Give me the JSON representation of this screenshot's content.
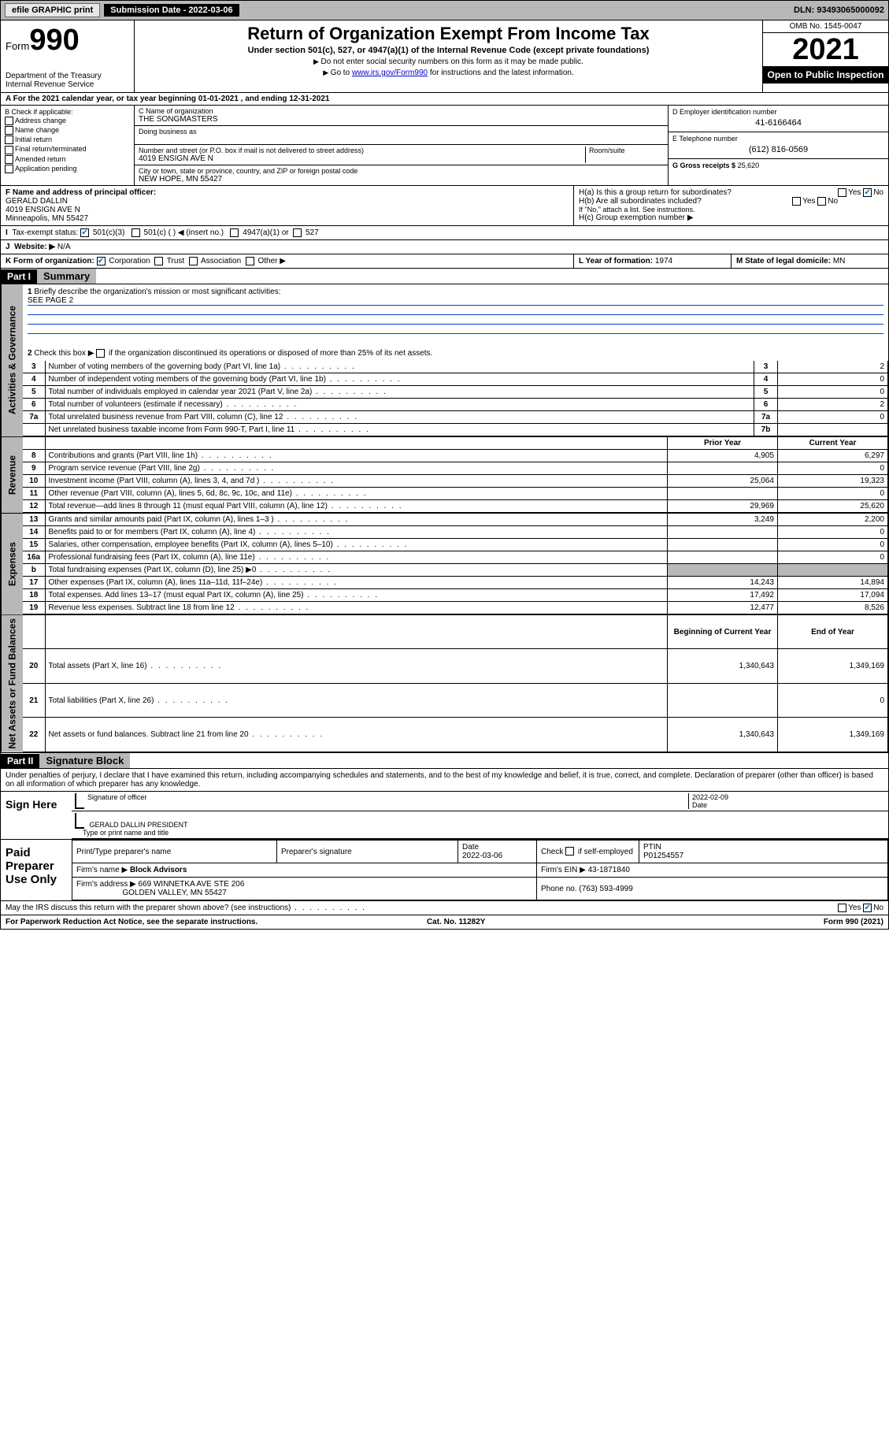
{
  "topbar": {
    "efile": "efile GRAPHIC print",
    "submission": "Submission Date - 2022-03-06",
    "dln": "DLN: 93493065000092"
  },
  "header": {
    "form_word": "Form",
    "form_num": "990",
    "dept": "Department of the Treasury Internal Revenue Service",
    "title": "Return of Organization Exempt From Income Tax",
    "subtitle": "Under section 501(c), 527, or 4947(a)(1) of the Internal Revenue Code (except private foundations)",
    "note1": "Do not enter social security numbers on this form as it may be made public.",
    "note2_pre": "Go to ",
    "note2_link": "www.irs.gov/Form990",
    "note2_post": " for instructions and the latest information.",
    "omb": "OMB No. 1545-0047",
    "year": "2021",
    "open": "Open to Public Inspection"
  },
  "rowA": "A For the 2021 calendar year, or tax year beginning 01-01-2021   , and ending 12-31-2021",
  "colB": {
    "label": "B Check if applicable:",
    "opts": [
      "Address change",
      "Name change",
      "Initial return",
      "Final return/terminated",
      "Amended return",
      "Application pending"
    ]
  },
  "colC": {
    "name_lbl": "C Name of organization",
    "name": "THE SONGMASTERS",
    "dba_lbl": "Doing business as",
    "dba": "",
    "addr_lbl": "Number and street (or P.O. box if mail is not delivered to street address)",
    "room_lbl": "Room/suite",
    "addr": "4019 ENSIGN AVE N",
    "city_lbl": "City or town, state or province, country, and ZIP or foreign postal code",
    "city": "NEW HOPE, MN  55427"
  },
  "colD": {
    "ein_lbl": "D Employer identification number",
    "ein": "41-6166464",
    "tel_lbl": "E Telephone number",
    "tel": "(612) 816-0569",
    "gross_lbl": "G Gross receipts $",
    "gross": "25,620"
  },
  "rowF": {
    "lbl": "F Name and address of principal officer:",
    "name": "GERALD DALLIN",
    "addr1": "4019 ENSIGN AVE N",
    "addr2": "Minneapolis, MN  55427"
  },
  "rowH": {
    "ha": "H(a)  Is this a group return for subordinates?",
    "hb": "H(b)  Are all subordinates included?",
    "hb_note": "If \"No,\" attach a list. See instructions.",
    "hc": "H(c)  Group exemption number ▶",
    "yes": "Yes",
    "no": "No"
  },
  "rowI": {
    "lbl": "Tax-exempt status:",
    "o1": "501(c)(3)",
    "o2": "501(c) (  ) ◀ (insert no.)",
    "o3": "4947(a)(1) or",
    "o4": "527"
  },
  "rowJ": {
    "lbl": "Website: ▶",
    "val": "N/A"
  },
  "rowK": {
    "lbl": "K Form of organization:",
    "o1": "Corporation",
    "o2": "Trust",
    "o3": "Association",
    "o4": "Other ▶"
  },
  "rowL": {
    "lbl": "L Year of formation:",
    "val": "1974"
  },
  "rowM": {
    "lbl": "M State of legal domicile:",
    "val": "MN"
  },
  "part1": {
    "hdr": "Part I",
    "title": "Summary"
  },
  "summary": {
    "l1": "Briefly describe the organization's mission or most significant activities:",
    "l1v": "SEE PAGE 2",
    "l2": "Check this box ▶       if the organization discontinued its operations or disposed of more than 25% of its net assets.",
    "rows_gov": [
      {
        "n": "3",
        "d": "Number of voting members of the governing body (Part VI, line 1a)",
        "b": "3",
        "v": "2"
      },
      {
        "n": "4",
        "d": "Number of independent voting members of the governing body (Part VI, line 1b)",
        "b": "4",
        "v": "0"
      },
      {
        "n": "5",
        "d": "Total number of individuals employed in calendar year 2021 (Part V, line 2a)",
        "b": "5",
        "v": "0"
      },
      {
        "n": "6",
        "d": "Total number of volunteers (estimate if necessary)",
        "b": "6",
        "v": "2"
      },
      {
        "n": "7a",
        "d": "Total unrelated business revenue from Part VIII, column (C), line 12",
        "b": "7a",
        "v": "0"
      },
      {
        "n": "",
        "d": "Net unrelated business taxable income from Form 990-T, Part I, line 11",
        "b": "7b",
        "v": ""
      }
    ],
    "hdr_py": "Prior Year",
    "hdr_cy": "Current Year",
    "rows_rev": [
      {
        "n": "8",
        "d": "Contributions and grants (Part VIII, line 1h)",
        "py": "4,905",
        "cy": "6,297"
      },
      {
        "n": "9",
        "d": "Program service revenue (Part VIII, line 2g)",
        "py": "",
        "cy": "0"
      },
      {
        "n": "10",
        "d": "Investment income (Part VIII, column (A), lines 3, 4, and 7d )",
        "py": "25,064",
        "cy": "19,323"
      },
      {
        "n": "11",
        "d": "Other revenue (Part VIII, column (A), lines 5, 6d, 8c, 9c, 10c, and 11e)",
        "py": "",
        "cy": "0"
      },
      {
        "n": "12",
        "d": "Total revenue—add lines 8 through 11 (must equal Part VIII, column (A), line 12)",
        "py": "29,969",
        "cy": "25,620"
      }
    ],
    "rows_exp": [
      {
        "n": "13",
        "d": "Grants and similar amounts paid (Part IX, column (A), lines 1–3 )",
        "py": "3,249",
        "cy": "2,200"
      },
      {
        "n": "14",
        "d": "Benefits paid to or for members (Part IX, column (A), line 4)",
        "py": "",
        "cy": "0"
      },
      {
        "n": "15",
        "d": "Salaries, other compensation, employee benefits (Part IX, column (A), lines 5–10)",
        "py": "",
        "cy": "0"
      },
      {
        "n": "16a",
        "d": "Professional fundraising fees (Part IX, column (A), line 11e)",
        "py": "",
        "cy": "0"
      },
      {
        "n": "b",
        "d": "Total fundraising expenses (Part IX, column (D), line 25) ▶0",
        "py": "SHADE",
        "cy": "SHADE"
      },
      {
        "n": "17",
        "d": "Other expenses (Part IX, column (A), lines 11a–11d, 11f–24e)",
        "py": "14,243",
        "cy": "14,894"
      },
      {
        "n": "18",
        "d": "Total expenses. Add lines 13–17 (must equal Part IX, column (A), line 25)",
        "py": "17,492",
        "cy": "17,094"
      },
      {
        "n": "19",
        "d": "Revenue less expenses. Subtract line 18 from line 12",
        "py": "12,477",
        "cy": "8,526"
      }
    ],
    "hdr_boy": "Beginning of Current Year",
    "hdr_eoy": "End of Year",
    "rows_na": [
      {
        "n": "20",
        "d": "Total assets (Part X, line 16)",
        "py": "1,340,643",
        "cy": "1,349,169"
      },
      {
        "n": "21",
        "d": "Total liabilities (Part X, line 26)",
        "py": "",
        "cy": "0"
      },
      {
        "n": "22",
        "d": "Net assets or fund balances. Subtract line 21 from line 20",
        "py": "1,340,643",
        "cy": "1,349,169"
      }
    ]
  },
  "vlabels": {
    "gov": "Activities & Governance",
    "rev": "Revenue",
    "exp": "Expenses",
    "na": "Net Assets or Fund Balances"
  },
  "part2": {
    "hdr": "Part II",
    "title": "Signature Block"
  },
  "declare": "Under penalties of perjury, I declare that I have examined this return, including accompanying schedules and statements, and to the best of my knowledge and belief, it is true, correct, and complete. Declaration of preparer (other than officer) is based on all information of which preparer has any knowledge.",
  "sign": {
    "here": "Sign Here",
    "sig_lbl": "Signature of officer",
    "date_lbl": "Date",
    "date": "2022-02-09",
    "name": "GERALD DALLIN  PRESIDENT",
    "name_lbl": "Type or print name and title"
  },
  "prep": {
    "lbl": "Paid Preparer Use Only",
    "c1": "Print/Type preparer's name",
    "c2": "Preparer's signature",
    "c3": "Date",
    "c3v": "2022-03-06",
    "c4": "Check        if self-employed",
    "c5": "PTIN",
    "c5v": "P01254557",
    "firm_lbl": "Firm's name   ▶",
    "firm": "Block Advisors",
    "ein_lbl": "Firm's EIN ▶",
    "ein": "43-1871840",
    "addr_lbl": "Firm's address ▶",
    "addr": "669 WINNETKA AVE STE 206",
    "addr2": "GOLDEN VALLEY, MN  55427",
    "ph_lbl": "Phone no.",
    "ph": "(763) 593-4999"
  },
  "may": "May the IRS discuss this return with the preparer shown above? (see instructions)",
  "footer": {
    "l": "For Paperwork Reduction Act Notice, see the separate instructions.",
    "c": "Cat. No. 11282Y",
    "r": "Form 990 (2021)"
  },
  "colors": {
    "shade": "#b8b8b8",
    "link": "#0000cc",
    "rule": "#0044cc"
  }
}
